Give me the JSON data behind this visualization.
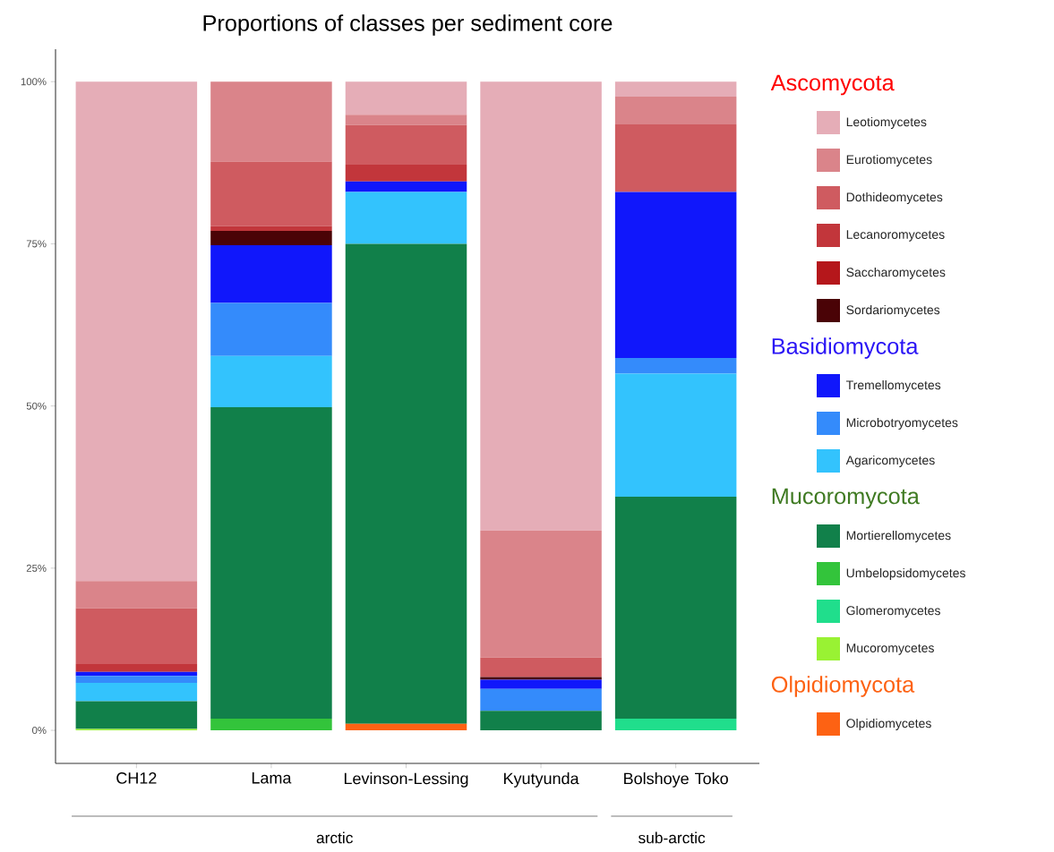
{
  "chart_data": {
    "type": "bar",
    "stacked": true,
    "title": "Proportions of classes per sediment core",
    "categories": [
      "CH12",
      "Lama",
      "Levinson-Lessing",
      "Kyutyunda",
      "Bolshoye Toko"
    ],
    "series": [
      {
        "name": "Olpidiomycetes",
        "color": "#fd6213",
        "values": [
          0,
          0,
          1.0,
          0,
          0
        ]
      },
      {
        "name": "Mucoromycetes",
        "color": "#99f233",
        "values": [
          0.2,
          0,
          0,
          0,
          0
        ]
      },
      {
        "name": "Glomeromycetes",
        "color": "#20de8c",
        "values": [
          0,
          0,
          0,
          0,
          1.8
        ]
      },
      {
        "name": "Umbelopsidomycetes",
        "color": "#33c43b",
        "values": [
          0,
          1.8,
          0,
          0,
          0
        ]
      },
      {
        "name": "Mortierellomycetes",
        "color": "#11804a",
        "values": [
          4.3,
          48.0,
          74.0,
          3.0,
          34.2
        ]
      },
      {
        "name": "Agaricomycetes",
        "color": "#33c3fd",
        "values": [
          2.8,
          7.9,
          8.0,
          0,
          19.0
        ]
      },
      {
        "name": "Microbotryomycetes",
        "color": "#348bfb",
        "values": [
          1.1,
          8.2,
          0,
          3.4,
          2.4
        ]
      },
      {
        "name": "Tremellomycetes",
        "color": "#1017fb",
        "values": [
          0.6,
          8.9,
          1.6,
          1.4,
          25.6
        ]
      },
      {
        "name": "Sordariomycetes",
        "color": "#4a0306",
        "values": [
          0,
          2.2,
          0,
          0.4,
          0
        ]
      },
      {
        "name": "Saccharomycetes",
        "color": "#b5171b",
        "values": [
          0,
          0,
          0,
          0,
          0
        ]
      },
      {
        "name": "Lecanoromycetes",
        "color": "#c2363b",
        "values": [
          1.2,
          0.7,
          2.6,
          0,
          0
        ]
      },
      {
        "name": "Dothideomycetes",
        "color": "#cf5b60",
        "values": [
          8.6,
          10.0,
          6.1,
          3.0,
          10.4
        ]
      },
      {
        "name": "Eurotiomycetes",
        "color": "#da848a",
        "values": [
          4.2,
          12.3,
          1.6,
          19.6,
          4.3
        ]
      },
      {
        "name": "Leotiomycetes",
        "color": "#e5adb7",
        "values": [
          77.0,
          0,
          5.1,
          69.2,
          2.3
        ]
      }
    ],
    "ylim": [
      -5.1,
      105
    ],
    "yticks": [
      {
        "value": 0,
        "label": "0%"
      },
      {
        "value": 25,
        "label": "25%"
      },
      {
        "value": 50,
        "label": "50%"
      },
      {
        "value": 75,
        "label": "75%"
      },
      {
        "value": 100,
        "label": "100%"
      }
    ],
    "legend": "right",
    "annotations": [
      "Ascomycota",
      "Basidiomycota",
      "Mucoromycota",
      "Olpidiomycota",
      "arctic",
      "sub-arctic"
    ]
  }
}
